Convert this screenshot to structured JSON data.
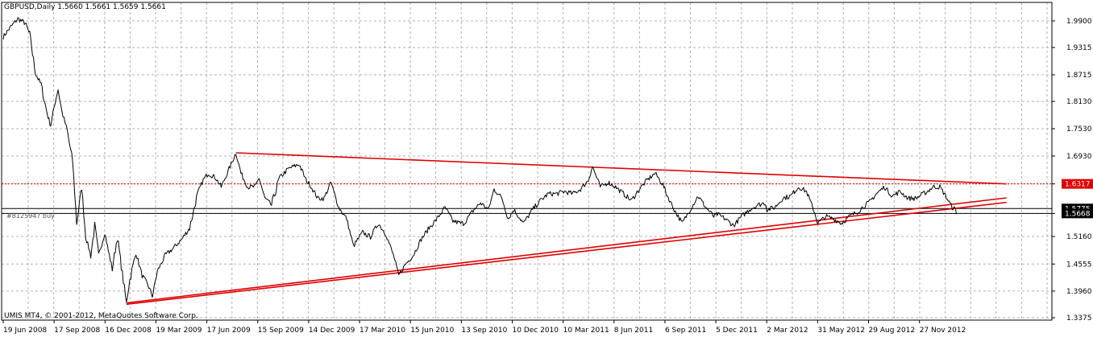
{
  "header": {
    "symbol_line": "GBPUSD,Daily  1.5660 1.5661 1.5659 1.5661"
  },
  "footer": {
    "copyright": "UMIS MT4, © 2001-2012, MetaQuotes Software Corp."
  },
  "order_label": "#8125947 buy",
  "colors": {
    "background": "#ffffff",
    "price_line": "#000000",
    "grid": "#b0b0b0",
    "trendline": "#e00000",
    "price_tag_red": "#e00000",
    "price_tag_black": "#000000"
  },
  "chart_data": {
    "type": "line",
    "symbol": "GBPUSD",
    "timeframe": "Daily",
    "ohlc_current": {
      "open": 1.566,
      "high": 1.5661,
      "low": 1.5659,
      "close": 1.5661
    },
    "ylim": [
      1.3375,
      2.04
    ],
    "y_ticks": [
      "1.9900",
      "1.9315",
      "1.8715",
      "1.8130",
      "1.7530",
      "1.6930",
      "1.6317",
      "1.5668",
      "1.5160",
      "1.4555",
      "1.3960",
      "1.3375"
    ],
    "x_tick_labels": [
      "19 Jun 2008",
      "17 Sep 2008",
      "16 Dec 2008",
      "19 Mar 2009",
      "17 Jun 2009",
      "15 Sep 2009",
      "14 Dec 2009",
      "17 Mar 2010",
      "15 Jun 2010",
      "13 Sep 2010",
      "10 Dec 2010",
      "10 Mar 2011",
      "8 Jun 2011",
      "6 Sep 2011",
      "5 Dec 2011",
      "2 Mar 2012",
      "31 May 2012",
      "29 Aug 2012",
      "27 Nov 2012"
    ],
    "series": [
      {
        "values": [
          {
            "x": "2008-06-19",
            "y": 1.955
          },
          {
            "x": "2008-07-01",
            "y": 1.975
          },
          {
            "x": "2008-07-15",
            "y": 1.995
          },
          {
            "x": "2008-07-28",
            "y": 1.985
          },
          {
            "x": "2008-08-05",
            "y": 1.96
          },
          {
            "x": "2008-08-15",
            "y": 1.875
          },
          {
            "x": "2008-08-25",
            "y": 1.85
          },
          {
            "x": "2008-09-05",
            "y": 1.785
          },
          {
            "x": "2008-09-11",
            "y": 1.76
          },
          {
            "x": "2008-09-17",
            "y": 1.8
          },
          {
            "x": "2008-09-24",
            "y": 1.84
          },
          {
            "x": "2008-10-01",
            "y": 1.79
          },
          {
            "x": "2008-10-10",
            "y": 1.75
          },
          {
            "x": "2008-10-20",
            "y": 1.68
          },
          {
            "x": "2008-10-27",
            "y": 1.545
          },
          {
            "x": "2008-11-05",
            "y": 1.625
          },
          {
            "x": "2008-11-12",
            "y": 1.515
          },
          {
            "x": "2008-11-21",
            "y": 1.475
          },
          {
            "x": "2008-11-28",
            "y": 1.54
          },
          {
            "x": "2008-12-05",
            "y": 1.475
          },
          {
            "x": "2008-12-16",
            "y": 1.525
          },
          {
            "x": "2008-12-22",
            "y": 1.485
          },
          {
            "x": "2008-12-29",
            "y": 1.445
          },
          {
            "x": "2009-01-07",
            "y": 1.515
          },
          {
            "x": "2009-01-23",
            "y": 1.37
          },
          {
            "x": "2009-01-29",
            "y": 1.42
          },
          {
            "x": "2009-02-09",
            "y": 1.48
          },
          {
            "x": "2009-02-20",
            "y": 1.43
          },
          {
            "x": "2009-03-02",
            "y": 1.41
          },
          {
            "x": "2009-03-10",
            "y": 1.385
          },
          {
            "x": "2009-03-19",
            "y": 1.44
          },
          {
            "x": "2009-04-02",
            "y": 1.475
          },
          {
            "x": "2009-04-16",
            "y": 1.49
          },
          {
            "x": "2009-05-01",
            "y": 1.51
          },
          {
            "x": "2009-05-15",
            "y": 1.535
          },
          {
            "x": "2009-05-29",
            "y": 1.61
          },
          {
            "x": "2009-06-08",
            "y": 1.64
          },
          {
            "x": "2009-06-17",
            "y": 1.655
          },
          {
            "x": "2009-06-30",
            "y": 1.645
          },
          {
            "x": "2009-07-10",
            "y": 1.625
          },
          {
            "x": "2009-07-24",
            "y": 1.665
          },
          {
            "x": "2009-08-05",
            "y": 1.7
          },
          {
            "x": "2009-08-14",
            "y": 1.655
          },
          {
            "x": "2009-08-26",
            "y": 1.625
          },
          {
            "x": "2009-09-08",
            "y": 1.625
          },
          {
            "x": "2009-09-15",
            "y": 1.645
          },
          {
            "x": "2009-09-25",
            "y": 1.6
          },
          {
            "x": "2009-10-07",
            "y": 1.585
          },
          {
            "x": "2009-10-21",
            "y": 1.645
          },
          {
            "x": "2009-11-06",
            "y": 1.665
          },
          {
            "x": "2009-11-25",
            "y": 1.675
          },
          {
            "x": "2009-12-07",
            "y": 1.64
          },
          {
            "x": "2009-12-14",
            "y": 1.63
          },
          {
            "x": "2009-12-28",
            "y": 1.6
          },
          {
            "x": "2010-01-08",
            "y": 1.6
          },
          {
            "x": "2010-01-20",
            "y": 1.635
          },
          {
            "x": "2010-02-03",
            "y": 1.58
          },
          {
            "x": "2010-02-17",
            "y": 1.555
          },
          {
            "x": "2010-03-01",
            "y": 1.495
          },
          {
            "x": "2010-03-17",
            "y": 1.525
          },
          {
            "x": "2010-03-31",
            "y": 1.515
          },
          {
            "x": "2010-04-14",
            "y": 1.545
          },
          {
            "x": "2010-04-28",
            "y": 1.52
          },
          {
            "x": "2010-05-12",
            "y": 1.47
          },
          {
            "x": "2010-05-20",
            "y": 1.43
          },
          {
            "x": "2010-06-01",
            "y": 1.455
          },
          {
            "x": "2010-06-15",
            "y": 1.475
          },
          {
            "x": "2010-06-29",
            "y": 1.51
          },
          {
            "x": "2010-07-13",
            "y": 1.535
          },
          {
            "x": "2010-07-27",
            "y": 1.555
          },
          {
            "x": "2010-08-10",
            "y": 1.58
          },
          {
            "x": "2010-08-24",
            "y": 1.55
          },
          {
            "x": "2010-09-07",
            "y": 1.545
          },
          {
            "x": "2010-09-13",
            "y": 1.545
          },
          {
            "x": "2010-09-27",
            "y": 1.57
          },
          {
            "x": "2010-10-12",
            "y": 1.59
          },
          {
            "x": "2010-10-26",
            "y": 1.575
          },
          {
            "x": "2010-11-05",
            "y": 1.62
          },
          {
            "x": "2010-11-19",
            "y": 1.6
          },
          {
            "x": "2010-11-30",
            "y": 1.555
          },
          {
            "x": "2010-12-10",
            "y": 1.575
          },
          {
            "x": "2010-12-27",
            "y": 1.545
          },
          {
            "x": "2011-01-12",
            "y": 1.575
          },
          {
            "x": "2011-01-26",
            "y": 1.595
          },
          {
            "x": "2011-02-09",
            "y": 1.61
          },
          {
            "x": "2011-02-23",
            "y": 1.61
          },
          {
            "x": "2011-03-10",
            "y": 1.615
          },
          {
            "x": "2011-03-24",
            "y": 1.61
          },
          {
            "x": "2011-04-07",
            "y": 1.62
          },
          {
            "x": "2011-04-21",
            "y": 1.64
          },
          {
            "x": "2011-04-28",
            "y": 1.67
          },
          {
            "x": "2011-05-12",
            "y": 1.625
          },
          {
            "x": "2011-05-26",
            "y": 1.635
          },
          {
            "x": "2011-06-08",
            "y": 1.625
          },
          {
            "x": "2011-06-22",
            "y": 1.61
          },
          {
            "x": "2011-07-06",
            "y": 1.595
          },
          {
            "x": "2011-07-20",
            "y": 1.62
          },
          {
            "x": "2011-08-03",
            "y": 1.64
          },
          {
            "x": "2011-08-17",
            "y": 1.655
          },
          {
            "x": "2011-08-31",
            "y": 1.63
          },
          {
            "x": "2011-09-06",
            "y": 1.61
          },
          {
            "x": "2011-09-20",
            "y": 1.575
          },
          {
            "x": "2011-10-04",
            "y": 1.545
          },
          {
            "x": "2011-10-18",
            "y": 1.575
          },
          {
            "x": "2011-11-01",
            "y": 1.605
          },
          {
            "x": "2011-11-15",
            "y": 1.58
          },
          {
            "x": "2011-11-29",
            "y": 1.56
          },
          {
            "x": "2011-12-05",
            "y": 1.565
          },
          {
            "x": "2011-12-19",
            "y": 1.555
          },
          {
            "x": "2012-01-03",
            "y": 1.54
          },
          {
            "x": "2012-01-17",
            "y": 1.56
          },
          {
            "x": "2012-01-31",
            "y": 1.575
          },
          {
            "x": "2012-02-14",
            "y": 1.585
          },
          {
            "x": "2012-02-28",
            "y": 1.59
          },
          {
            "x": "2012-03-02",
            "y": 1.575
          },
          {
            "x": "2012-03-16",
            "y": 1.58
          },
          {
            "x": "2012-03-30",
            "y": 1.6
          },
          {
            "x": "2012-04-13",
            "y": 1.605
          },
          {
            "x": "2012-04-27",
            "y": 1.625
          },
          {
            "x": "2012-05-11",
            "y": 1.615
          },
          {
            "x": "2012-05-25",
            "y": 1.57
          },
          {
            "x": "2012-05-31",
            "y": 1.545
          },
          {
            "x": "2012-06-14",
            "y": 1.56
          },
          {
            "x": "2012-06-28",
            "y": 1.555
          },
          {
            "x": "2012-07-12",
            "y": 1.545
          },
          {
            "x": "2012-07-26",
            "y": 1.56
          },
          {
            "x": "2012-08-09",
            "y": 1.57
          },
          {
            "x": "2012-08-23",
            "y": 1.585
          },
          {
            "x": "2012-08-29",
            "y": 1.59
          },
          {
            "x": "2012-09-12",
            "y": 1.61
          },
          {
            "x": "2012-09-26",
            "y": 1.625
          },
          {
            "x": "2012-10-10",
            "y": 1.605
          },
          {
            "x": "2012-10-24",
            "y": 1.615
          },
          {
            "x": "2012-11-07",
            "y": 1.6
          },
          {
            "x": "2012-11-21",
            "y": 1.6
          },
          {
            "x": "2012-11-27",
            "y": 1.605
          },
          {
            "x": "2012-12-11",
            "y": 1.615
          },
          {
            "x": "2012-12-21",
            "y": 1.625
          },
          {
            "x": "2013-01-02",
            "y": 1.625
          },
          {
            "x": "2013-01-10",
            "y": 1.61
          },
          {
            "x": "2013-01-17",
            "y": 1.595
          },
          {
            "x": "2013-01-24",
            "y": 1.58
          },
          {
            "x": "2013-01-30",
            "y": 1.575
          },
          {
            "x": "2013-02-01",
            "y": 1.566
          }
        ]
      }
    ],
    "trendlines": [
      {
        "from": {
          "x": "2009-08-05",
          "y": 1.7
        },
        "to": {
          "x": "2013-04-30",
          "y": 1.6317
        }
      },
      {
        "from": {
          "x": "2009-01-23",
          "y": 1.37
        },
        "to": {
          "x": "2013-04-30",
          "y": 1.601
        }
      },
      {
        "from": {
          "x": "2009-01-23",
          "y": 1.367
        },
        "to": {
          "x": "2013-04-30",
          "y": 1.591
        }
      }
    ],
    "horizontal_lines": [
      {
        "y": 1.6317,
        "style": "dotted",
        "color": "#e00000"
      },
      {
        "y": 1.5775,
        "style": "solid",
        "color": "#000000"
      },
      {
        "y": 1.5668,
        "style": "solid",
        "color": "#000000"
      }
    ],
    "price_tags": [
      {
        "label": "1.6317",
        "y": 1.6317,
        "color": "#e00000"
      },
      {
        "label": "1.5775",
        "y": 1.5775,
        "color": "#000000"
      },
      {
        "label": "1.5668",
        "y": 1.5668,
        "color": "#000000"
      }
    ],
    "grid": true
  }
}
